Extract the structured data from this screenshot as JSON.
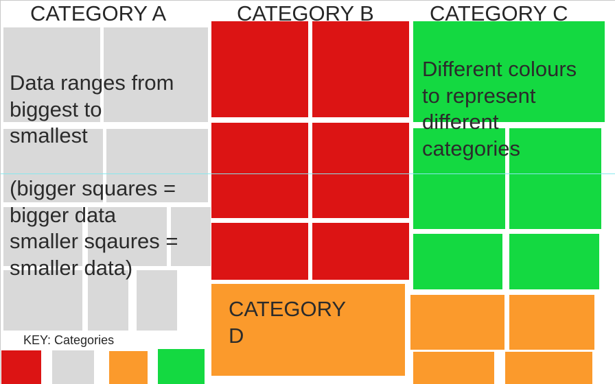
{
  "categories": {
    "a": "CATEGORY A",
    "b": "CATEGORY B",
    "c": "CATEGORY C",
    "d": "CATEGORY\nD"
  },
  "notes": {
    "range": "Data ranges from\nbiggest to\nsmallest\n\n(bigger squares =\nbigger data\nsmaller sqaures =\nsmaller data)",
    "colours": "Different colours\nto represent\ndifferent\ncategories"
  },
  "key": {
    "label": "KEY: Categories"
  },
  "colors": {
    "category_a": "#d9d9d9",
    "category_b": "#dc1414",
    "category_c": "#14d941",
    "category_d": "#fb9a2c",
    "guide_line": "#88e8ee"
  }
}
